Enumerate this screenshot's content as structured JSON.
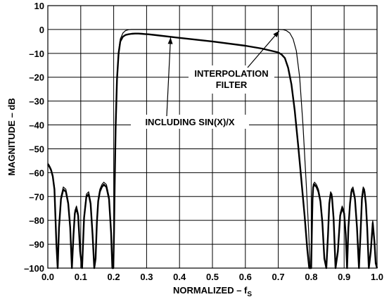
{
  "chart_data": {
    "type": "line",
    "xlabel_main": "NORMALIZED – f",
    "xlabel_sub": "S",
    "ylabel": "MAGNITUDE – dB",
    "xlim": [
      0.0,
      1.0
    ],
    "ylim": [
      -100,
      10
    ],
    "grid": true,
    "x_ticks": [
      "0.0",
      "0.1",
      "0.2",
      "0.3",
      "0.4",
      "0.5",
      "0.6",
      "0.7",
      "0.8",
      "0.9",
      "1.0"
    ],
    "y_ticks": [
      "10",
      "0",
      "–10",
      "–20",
      "–30",
      "–40",
      "–50",
      "–60",
      "–70",
      "–80",
      "–90",
      "–100"
    ],
    "x_tick_values": [
      0.0,
      0.1,
      0.2,
      0.3,
      0.4,
      0.5,
      0.6,
      0.7,
      0.8,
      0.9,
      1.0
    ],
    "y_tick_values": [
      10,
      0,
      -10,
      -20,
      -30,
      -40,
      -50,
      -60,
      -70,
      -80,
      -90,
      -100
    ],
    "annotations": [
      {
        "lines": [
          "INTERPOLATION",
          "FILTER"
        ],
        "arrow_to": [
          0.66,
          0.0
        ]
      },
      {
        "lines": [
          "INCLUDING SIN(X)/X"
        ],
        "arrow_to": [
          0.375,
          -2.8
        ]
      }
    ],
    "series": [
      {
        "style": "thin",
        "x": [
          0.0,
          0.005,
          0.01,
          0.015,
          0.02,
          0.026,
          0.03,
          0.034,
          0.04,
          0.047,
          0.055,
          0.062,
          0.068,
          0.073,
          0.078,
          0.082,
          0.087,
          0.092,
          0.098,
          0.104,
          0.11,
          0.117,
          0.124,
          0.13,
          0.136,
          0.141,
          0.145,
          0.149,
          0.153,
          0.158,
          0.164,
          0.17,
          0.178,
          0.186,
          0.192,
          0.196,
          0.199,
          0.201,
          0.203,
          0.206,
          0.21,
          0.215,
          0.22,
          0.228,
          0.236,
          0.245,
          0.255,
          0.265,
          0.275,
          0.285,
          0.295,
          0.305,
          0.32,
          0.4,
          0.5,
          0.6,
          0.68,
          0.7,
          0.715,
          0.725,
          0.735,
          0.745,
          0.755,
          0.765,
          0.775,
          0.785,
          0.792,
          0.797,
          0.8,
          0.802,
          0.804,
          0.806,
          0.81,
          0.816,
          0.822,
          0.828,
          0.834,
          0.84,
          0.846,
          0.851,
          0.855,
          0.859,
          0.863,
          0.868,
          0.874,
          0.881,
          0.888,
          0.894,
          0.9,
          0.905,
          0.909,
          0.913,
          0.918,
          0.922,
          0.927,
          0.933,
          0.939,
          0.945,
          0.95,
          0.954,
          0.958,
          0.962,
          0.966,
          0.97,
          0.975,
          0.981,
          0.987,
          0.992,
          0.996,
          1.0
        ],
        "y": [
          -56,
          -57,
          -58.5,
          -61,
          -66,
          -90,
          -100,
          -82,
          -70,
          -66,
          -67,
          -72,
          -82,
          -99,
          -85,
          -76,
          -74,
          -77,
          -92,
          -100,
          -78,
          -69,
          -68,
          -72,
          -85,
          -100,
          -95,
          -80,
          -71,
          -67,
          -65,
          -64,
          -65,
          -70,
          -84,
          -100,
          -100,
          -84,
          -65,
          -40,
          -20,
          -9,
          -4,
          -1.5,
          -0.5,
          -0.1,
          0.0,
          0.0,
          0.0,
          0.0,
          0.0,
          0.0,
          0.0,
          0.0,
          0.0,
          0.0,
          0.0,
          0.0,
          -0.1,
          -0.5,
          -1.5,
          -4,
          -9,
          -20,
          -40,
          -65,
          -84,
          -100,
          -100,
          -84,
          -70,
          -65,
          -64,
          -65,
          -67,
          -71,
          -80,
          -95,
          -100,
          -85,
          -72,
          -68,
          -69,
          -78,
          -100,
          -92,
          -77,
          -74,
          -76,
          -85,
          -99,
          -82,
          -72,
          -67,
          -66,
          -70,
          -82,
          -100,
          -84,
          -70,
          -66,
          -67,
          -72,
          -82,
          -100,
          -92,
          -80,
          -88,
          -97,
          -100
        ]
      },
      {
        "style": "thick",
        "x": [
          0.0,
          0.005,
          0.01,
          0.015,
          0.02,
          0.026,
          0.03,
          0.034,
          0.04,
          0.047,
          0.055,
          0.062,
          0.068,
          0.073,
          0.078,
          0.082,
          0.087,
          0.092,
          0.098,
          0.104,
          0.11,
          0.117,
          0.124,
          0.13,
          0.136,
          0.141,
          0.145,
          0.149,
          0.153,
          0.158,
          0.164,
          0.17,
          0.178,
          0.186,
          0.192,
          0.196,
          0.199,
          0.201,
          0.203,
          0.206,
          0.21,
          0.215,
          0.22,
          0.228,
          0.236,
          0.245,
          0.255,
          0.265,
          0.275,
          0.285,
          0.295,
          0.305,
          0.33,
          0.4,
          0.5,
          0.6,
          0.65,
          0.7,
          0.71,
          0.72,
          0.73,
          0.74,
          0.75,
          0.76,
          0.77,
          0.78,
          0.788,
          0.794,
          0.8,
          0.802,
          0.804,
          0.806,
          0.81,
          0.816,
          0.822,
          0.828,
          0.834,
          0.84,
          0.846,
          0.851,
          0.855,
          0.859,
          0.863,
          0.868,
          0.874,
          0.881,
          0.888,
          0.894,
          0.9,
          0.905,
          0.909,
          0.913,
          0.918,
          0.922,
          0.927,
          0.933,
          0.939,
          0.945,
          0.95,
          0.954,
          0.958,
          0.962,
          0.966,
          0.97,
          0.975,
          0.981,
          0.987,
          0.992,
          0.996,
          1.0
        ],
        "y": [
          -56.5,
          -57.5,
          -59,
          -61.5,
          -67,
          -90,
          -100,
          -83,
          -71,
          -67,
          -68,
          -73,
          -83,
          -100,
          -86,
          -77,
          -75,
          -78,
          -93,
          -100,
          -79,
          -70,
          -69,
          -73,
          -86,
          -100,
          -96,
          -81,
          -72,
          -68,
          -66,
          -65,
          -66,
          -71,
          -85,
          -100,
          -100,
          -85,
          -66,
          -41,
          -21,
          -10,
          -5,
          -3,
          -2.3,
          -2.0,
          -1.8,
          -1.7,
          -1.7,
          -1.8,
          -1.9,
          -2.0,
          -2.4,
          -3.5,
          -5.0,
          -6.8,
          -8.0,
          -9.6,
          -10.5,
          -12,
          -16,
          -23,
          -34,
          -48,
          -63,
          -78,
          -92,
          -100,
          -100,
          -85,
          -71,
          -66,
          -65,
          -66,
          -68,
          -72,
          -81,
          -96,
          -100,
          -86,
          -73,
          -69,
          -70,
          -79,
          -100,
          -93,
          -78,
          -75,
          -77,
          -86,
          -100,
          -83,
          -73,
          -68,
          -67,
          -71,
          -83,
          -100,
          -85,
          -71,
          -67,
          -68,
          -73,
          -83,
          -100,
          -93,
          -81,
          -89,
          -98,
          -100
        ]
      }
    ]
  }
}
